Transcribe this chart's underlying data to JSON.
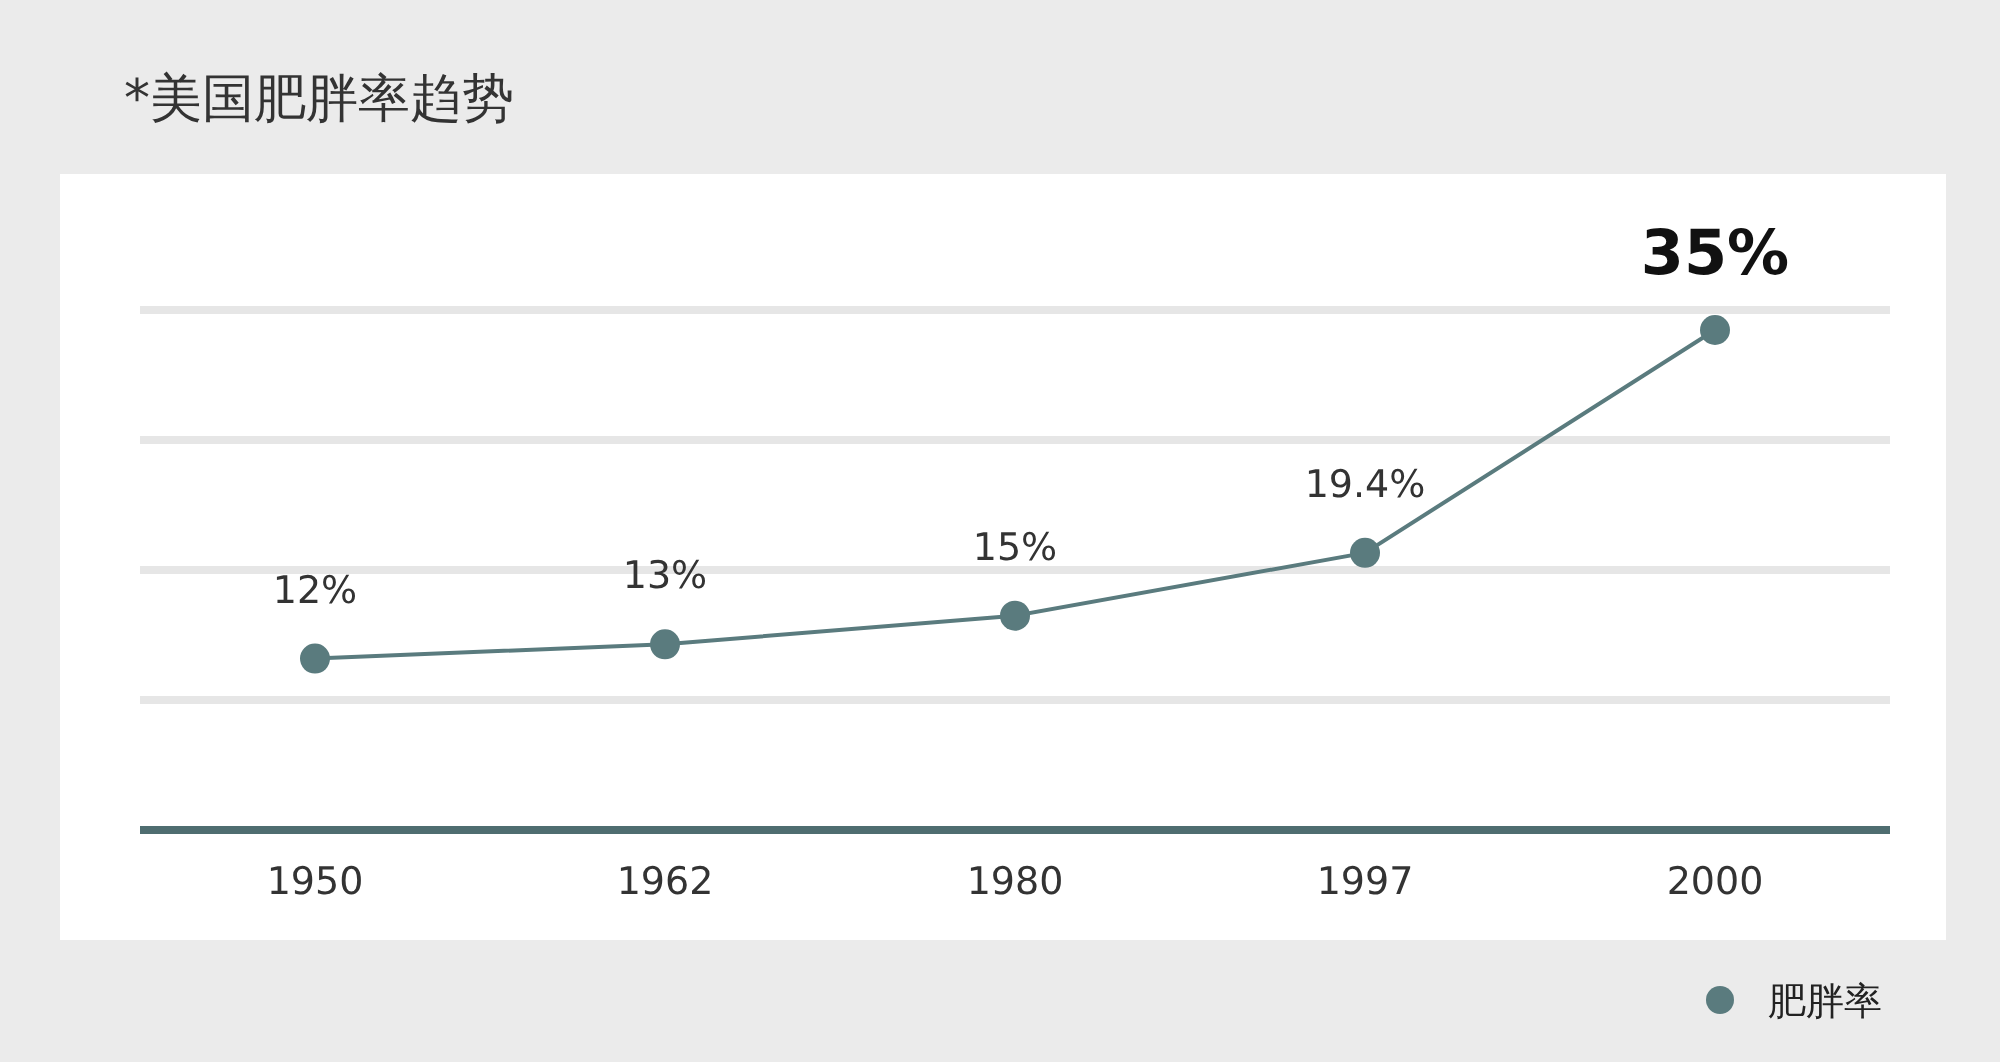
{
  "chart_data": {
    "type": "line",
    "title": "*美国肥胖率趋势",
    "categories": [
      "1950",
      "1962",
      "1980",
      "1997",
      "2000"
    ],
    "series": [
      {
        "name": "肥胖率",
        "color": "#5a7b7e",
        "values": [
          12,
          13,
          15,
          19.4,
          35
        ],
        "value_labels": [
          "12%",
          "13%",
          "15%",
          "19.4%",
          "35%"
        ]
      }
    ],
    "ylim": [
      0,
      36.4
    ],
    "yticks": [
      {
        "value": 9.1,
        "label": null
      },
      {
        "value": 18.2,
        "label": null
      },
      {
        "value": 27.3,
        "label": null
      },
      {
        "value": 36.4,
        "label": null
      }
    ],
    "tick_labels": "x",
    "data_labels": true,
    "grid": "y",
    "legend": "bottom right",
    "marker": "circle"
  }
}
